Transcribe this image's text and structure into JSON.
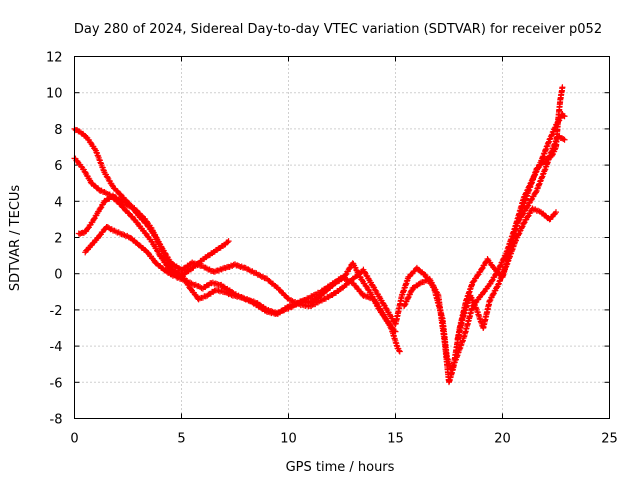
{
  "chart_data": {
    "type": "scatter",
    "title": "Day 280 of 2024, Sidereal Day-to-day VTEC variation (SDTVAR) for receiver p052",
    "xlabel": "GPS time / hours",
    "ylabel": "SDTVAR / TECUs",
    "xlim": [
      0,
      25
    ],
    "ylim": [
      -8,
      12
    ],
    "xticks": [
      "0",
      "5",
      "10",
      "15",
      "20",
      "25"
    ],
    "yticks": [
      "-8",
      "-6",
      "-4",
      "-2",
      "0",
      "2",
      "4",
      "6",
      "8",
      "10",
      "12"
    ],
    "grid": true,
    "marker": "+",
    "color": "#ff0000",
    "series": [
      {
        "points": [
          [
            0.0,
            8.0
          ],
          [
            0.3,
            7.8
          ],
          [
            0.6,
            7.5
          ],
          [
            1.0,
            6.8
          ],
          [
            1.4,
            5.6
          ],
          [
            1.8,
            4.8
          ],
          [
            2.2,
            4.3
          ],
          [
            2.6,
            3.8
          ],
          [
            3.0,
            3.2
          ],
          [
            3.4,
            2.7
          ],
          [
            3.8,
            2.0
          ],
          [
            4.2,
            1.0
          ],
          [
            4.6,
            0.2
          ],
          [
            5.0,
            -0.1
          ],
          [
            5.5,
            0.3
          ],
          [
            6.0,
            0.8
          ],
          [
            6.5,
            1.2
          ],
          [
            7.0,
            1.6
          ],
          [
            7.2,
            1.8
          ]
        ]
      },
      {
        "points": [
          [
            0.0,
            6.4
          ],
          [
            0.4,
            5.8
          ],
          [
            0.8,
            5.0
          ],
          [
            1.2,
            4.6
          ],
          [
            1.6,
            4.4
          ],
          [
            2.0,
            4.0
          ],
          [
            2.4,
            3.5
          ],
          [
            2.8,
            3.0
          ],
          [
            3.2,
            2.4
          ],
          [
            3.6,
            1.8
          ],
          [
            4.0,
            1.0
          ],
          [
            4.4,
            0.3
          ],
          [
            4.8,
            -0.2
          ],
          [
            5.2,
            -0.4
          ],
          [
            5.6,
            -0.6
          ],
          [
            6.0,
            -0.8
          ],
          [
            6.4,
            -0.5
          ],
          [
            6.8,
            -0.6
          ],
          [
            7.2,
            -0.9
          ],
          [
            7.6,
            -1.2
          ],
          [
            8.0,
            -1.4
          ],
          [
            8.5,
            -1.6
          ],
          [
            9.0,
            -2.0
          ],
          [
            9.5,
            -2.2
          ],
          [
            10.0,
            -1.8
          ],
          [
            10.5,
            -1.6
          ],
          [
            11.0,
            -1.3
          ],
          [
            11.5,
            -1.0
          ],
          [
            12.0,
            -0.6
          ],
          [
            12.5,
            -0.2
          ],
          [
            13.0,
            -0.5
          ],
          [
            13.5,
            -1.2
          ],
          [
            14.0,
            -1.4
          ],
          [
            14.4,
            -2.2
          ],
          [
            14.8,
            -3.0
          ],
          [
            15.1,
            -4.1
          ],
          [
            15.2,
            -4.3
          ]
        ]
      },
      {
        "points": [
          [
            0.2,
            2.2
          ],
          [
            0.5,
            2.3
          ],
          [
            0.8,
            2.8
          ],
          [
            1.1,
            3.4
          ],
          [
            1.4,
            4.0
          ],
          [
            1.8,
            4.3
          ],
          [
            2.3,
            3.9
          ],
          [
            2.8,
            3.6
          ],
          [
            3.3,
            3.0
          ],
          [
            3.6,
            2.5
          ],
          [
            4.0,
            1.6
          ],
          [
            4.5,
            0.6
          ],
          [
            5.0,
            0.2
          ],
          [
            5.5,
            0.6
          ],
          [
            6.0,
            0.4
          ],
          [
            6.5,
            0.1
          ],
          [
            7.0,
            0.3
          ],
          [
            7.5,
            0.5
          ],
          [
            8.0,
            0.3
          ],
          [
            8.5,
            0.0
          ],
          [
            9.0,
            -0.3
          ],
          [
            9.5,
            -0.8
          ],
          [
            10.0,
            -1.4
          ],
          [
            10.5,
            -1.7
          ],
          [
            11.0,
            -1.8
          ],
          [
            11.5,
            -1.5
          ],
          [
            12.0,
            -1.2
          ],
          [
            12.5,
            -0.8
          ],
          [
            13.0,
            -0.3
          ],
          [
            13.5,
            0.2
          ],
          [
            14.0,
            -0.8
          ],
          [
            14.5,
            -1.8
          ],
          [
            15.0,
            -2.8
          ],
          [
            15.3,
            -1.2
          ],
          [
            15.6,
            -0.2
          ],
          [
            16.0,
            0.3
          ],
          [
            16.4,
            -0.1
          ],
          [
            16.8,
            -0.8
          ],
          [
            17.2,
            -2.5
          ],
          [
            17.4,
            -4.6
          ],
          [
            17.6,
            -5.3
          ],
          [
            17.8,
            -4.8
          ],
          [
            18.2,
            -3.5
          ],
          [
            18.6,
            -1.8
          ],
          [
            19.0,
            -1.2
          ],
          [
            19.4,
            -0.6
          ],
          [
            19.8,
            0.2
          ],
          [
            20.2,
            1.2
          ],
          [
            20.6,
            2.6
          ],
          [
            21.0,
            4.2
          ],
          [
            21.4,
            5.2
          ],
          [
            21.8,
            6.2
          ],
          [
            22.2,
            7.4
          ],
          [
            22.5,
            8.2
          ],
          [
            22.8,
            8.8
          ],
          [
            22.9,
            8.7
          ]
        ]
      },
      {
        "points": [
          [
            0.5,
            1.2
          ],
          [
            0.8,
            1.6
          ],
          [
            1.1,
            2.0
          ],
          [
            1.5,
            2.6
          ],
          [
            1.8,
            2.4
          ],
          [
            2.2,
            2.2
          ],
          [
            2.6,
            2.0
          ],
          [
            3.0,
            1.6
          ],
          [
            3.4,
            1.2
          ],
          [
            3.8,
            0.6
          ],
          [
            4.2,
            0.2
          ],
          [
            4.6,
            -0.1
          ],
          [
            5.0,
            0.0
          ],
          [
            5.4,
            -0.8
          ],
          [
            5.8,
            -1.4
          ],
          [
            6.2,
            -1.2
          ],
          [
            6.6,
            -0.9
          ],
          [
            7.0,
            -1.0
          ],
          [
            7.4,
            -1.2
          ],
          [
            7.8,
            -1.3
          ],
          [
            8.2,
            -1.5
          ],
          [
            8.6,
            -1.8
          ],
          [
            9.0,
            -2.1
          ],
          [
            9.4,
            -2.2
          ],
          [
            9.8,
            -2.0
          ],
          [
            10.2,
            -1.8
          ],
          [
            10.6,
            -1.5
          ],
          [
            11.0,
            -1.6
          ],
          [
            11.4,
            -1.3
          ],
          [
            11.8,
            -0.9
          ],
          [
            12.2,
            -0.5
          ],
          [
            12.6,
            -0.2
          ],
          [
            13.0,
            0.6
          ],
          [
            13.4,
            -0.3
          ],
          [
            13.8,
            -1.0
          ],
          [
            14.2,
            -1.9
          ],
          [
            14.6,
            -2.6
          ],
          [
            15.0,
            -3.2
          ]
        ]
      },
      {
        "points": [
          [
            15.4,
            -1.8
          ],
          [
            15.8,
            -0.8
          ],
          [
            16.2,
            -0.5
          ],
          [
            16.6,
            -0.3
          ],
          [
            17.0,
            -1.2
          ],
          [
            17.3,
            -3.8
          ],
          [
            17.5,
            -6.0
          ],
          [
            17.7,
            -5.2
          ],
          [
            18.0,
            -3.0
          ],
          [
            18.3,
            -1.5
          ],
          [
            18.6,
            -0.5
          ],
          [
            19.0,
            0.2
          ],
          [
            19.3,
            0.8
          ],
          [
            19.6,
            0.3
          ],
          [
            20.0,
            -0.2
          ],
          [
            20.4,
            1.5
          ],
          [
            20.8,
            3.2
          ],
          [
            21.2,
            4.5
          ],
          [
            21.6,
            5.8
          ],
          [
            22.0,
            6.3
          ],
          [
            22.3,
            6.5
          ],
          [
            22.5,
            7.0
          ],
          [
            22.6,
            8.5
          ],
          [
            22.7,
            9.6
          ],
          [
            22.8,
            10.3
          ]
        ]
      },
      {
        "points": [
          [
            17.9,
            -3.6
          ],
          [
            18.2,
            -2.2
          ],
          [
            18.5,
            -1.2
          ],
          [
            18.8,
            -2.0
          ],
          [
            19.1,
            -3.0
          ],
          [
            19.4,
            -1.5
          ],
          [
            19.8,
            -0.6
          ],
          [
            20.2,
            0.5
          ],
          [
            20.6,
            1.8
          ],
          [
            21.0,
            2.8
          ],
          [
            21.4,
            3.6
          ],
          [
            21.8,
            3.4
          ],
          [
            22.2,
            3.0
          ],
          [
            22.5,
            3.4
          ]
        ]
      },
      {
        "points": [
          [
            20.8,
            3.0
          ],
          [
            21.2,
            3.8
          ],
          [
            21.6,
            4.6
          ],
          [
            22.0,
            5.8
          ],
          [
            22.3,
            6.8
          ],
          [
            22.6,
            7.6
          ],
          [
            22.9,
            7.4
          ]
        ]
      }
    ]
  }
}
